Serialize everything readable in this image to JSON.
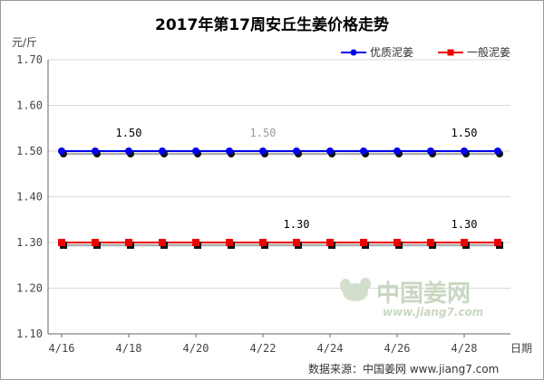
{
  "chart_data": {
    "type": "line",
    "title": "2017年第17周安丘生姜价格走势",
    "ylabel": "元/斤",
    "xlabel": "日期",
    "ylim": [
      1.1,
      1.7
    ],
    "yticks": [
      "1.10",
      "1.20",
      "1.30",
      "1.40",
      "1.50",
      "1.60",
      "1.70"
    ],
    "x": [
      "4/16",
      "4/17",
      "4/18",
      "4/19",
      "4/20",
      "4/21",
      "4/22",
      "4/23",
      "4/24",
      "4/25",
      "4/26",
      "4/27",
      "4/28",
      "4/29"
    ],
    "xtick_labels": [
      "4/16",
      "4/18",
      "4/20",
      "4/22",
      "4/24",
      "4/26",
      "4/28"
    ],
    "grid": "horizontal",
    "legend_position": "top-right",
    "series": [
      {
        "name": "优质泥姜",
        "color": "#0000ee",
        "marker": "circle",
        "values": [
          1.5,
          1.5,
          1.5,
          1.5,
          1.5,
          1.5,
          1.5,
          1.5,
          1.5,
          1.5,
          1.5,
          1.5,
          1.5,
          1.5
        ],
        "labels": [
          {
            "index": 2,
            "text": "1.50",
            "color": "#000000"
          },
          {
            "index": 6,
            "text": "1.50",
            "color": "#999999"
          },
          {
            "index": 12,
            "text": "1.50",
            "color": "#000000"
          }
        ]
      },
      {
        "name": "一般泥姜",
        "color": "#ee0000",
        "marker": "square",
        "values": [
          1.3,
          1.3,
          1.3,
          1.3,
          1.3,
          1.3,
          1.3,
          1.3,
          1.3,
          1.3,
          1.3,
          1.3,
          1.3,
          1.3
        ],
        "labels": [
          {
            "index": 7,
            "text": "1.30",
            "color": "#000000"
          },
          {
            "index": 12,
            "text": "1.30",
            "color": "#000000"
          }
        ]
      }
    ]
  },
  "watermark": {
    "icon": "ginger-logo-icon",
    "text": "中国姜网",
    "url": "www.jiang7.com"
  },
  "footer": {
    "source": "数据来源：中国姜网 www.jiang7.com"
  }
}
